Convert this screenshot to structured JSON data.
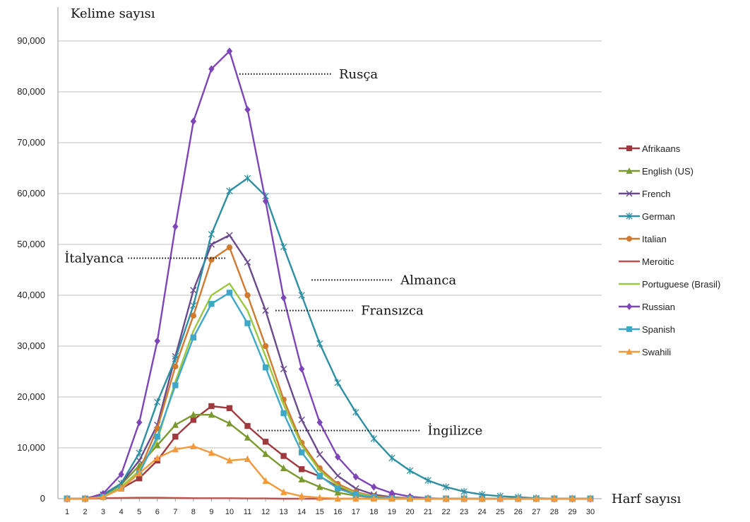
{
  "chart_data": {
    "type": "line",
    "ylabel": "Kelime sayısı",
    "xlabel": "Harf sayısı",
    "x": [
      1,
      2,
      3,
      4,
      5,
      6,
      7,
      8,
      9,
      10,
      11,
      12,
      13,
      14,
      15,
      16,
      17,
      18,
      19,
      20,
      21,
      22,
      23,
      24,
      25,
      26,
      27,
      28,
      29,
      30
    ],
    "ylim": [
      0,
      90000
    ],
    "yticks": [
      0,
      10000,
      20000,
      30000,
      40000,
      50000,
      60000,
      70000,
      80000,
      90000
    ],
    "ytick_labels": [
      "0",
      "10,000",
      "20,000",
      "30,000",
      "40,000",
      "50,000",
      "60,000",
      "70,000",
      "80,000",
      "90,000"
    ],
    "grid": true,
    "legend_position": "right",
    "series": [
      {
        "name": "Afrikaans",
        "color": "#A0393D",
        "marker": "square",
        "values": [
          0,
          0,
          500,
          2000,
          4000,
          7500,
          12200,
          15500,
          18200,
          17800,
          14300,
          11200,
          8400,
          5800,
          4400,
          2300,
          1100,
          500,
          200,
          100,
          0,
          0,
          0,
          0,
          0,
          0,
          0,
          0,
          0,
          0
        ]
      },
      {
        "name": "English (US)",
        "color": "#7A9A2E",
        "marker": "triangle",
        "values": [
          0,
          0,
          500,
          2800,
          6500,
          10500,
          14500,
          16500,
          16500,
          14800,
          12000,
          8800,
          6000,
          3800,
          2300,
          1200,
          600,
          200,
          100,
          0,
          0,
          0,
          0,
          0,
          0,
          0,
          0,
          0,
          0,
          0
        ]
      },
      {
        "name": "French",
        "color": "#6A4A8C",
        "marker": "x",
        "values": [
          0,
          0,
          800,
          3000,
          7500,
          14500,
          28000,
          41000,
          50000,
          51800,
          46500,
          37000,
          25500,
          15500,
          8700,
          4500,
          2000,
          800,
          300,
          100,
          0,
          0,
          0,
          0,
          0,
          0,
          0,
          0,
          0,
          0
        ]
      },
      {
        "name": "German",
        "color": "#2D8FA3",
        "marker": "star",
        "values": [
          0,
          0,
          700,
          3000,
          9000,
          19000,
          27500,
          38000,
          52000,
          60500,
          63000,
          59500,
          49500,
          40000,
          30500,
          22800,
          17000,
          11800,
          8000,
          5500,
          3600,
          2300,
          1400,
          800,
          500,
          300,
          100,
          0,
          0,
          0
        ]
      },
      {
        "name": "Italian",
        "color": "#D07A2F",
        "marker": "circle",
        "values": [
          0,
          0,
          400,
          2200,
          5500,
          13800,
          26000,
          36000,
          47000,
          49400,
          40000,
          30000,
          19500,
          11000,
          6000,
          2900,
          1300,
          500,
          200,
          100,
          0,
          0,
          0,
          0,
          0,
          0,
          0,
          0,
          0,
          0
        ]
      },
      {
        "name": "Meroitic",
        "color": "#C0504D",
        "marker": "none",
        "values": [
          0,
          0,
          100,
          150,
          200,
          200,
          150,
          100,
          100,
          100,
          50,
          50,
          0,
          0,
          0,
          0,
          0,
          0,
          0,
          0,
          0,
          0,
          0,
          0,
          0,
          0,
          0,
          0,
          0,
          0
        ]
      },
      {
        "name": "Portuguese (Brasil)",
        "color": "#9BC83E",
        "marker": "none",
        "values": [
          0,
          0,
          400,
          2300,
          5500,
          11500,
          23000,
          33000,
          40000,
          42300,
          37000,
          28000,
          18500,
          10500,
          5500,
          2600,
          1100,
          400,
          100,
          0,
          0,
          0,
          0,
          0,
          0,
          0,
          0,
          0,
          0,
          0
        ]
      },
      {
        "name": "Russian",
        "color": "#7E45B8",
        "marker": "diamond",
        "values": [
          0,
          0,
          1000,
          4800,
          15000,
          31000,
          53500,
          74200,
          84500,
          88000,
          76500,
          58500,
          39500,
          25500,
          15000,
          8200,
          4300,
          2300,
          1100,
          400,
          100,
          0,
          0,
          0,
          0,
          0,
          0,
          0,
          0,
          0
        ]
      },
      {
        "name": "Spanish",
        "color": "#3FA8C8",
        "marker": "square",
        "values": [
          0,
          0,
          400,
          2000,
          5000,
          12200,
          22300,
          31700,
          38300,
          40500,
          34500,
          25800,
          16800,
          9100,
          4500,
          2000,
          800,
          300,
          100,
          0,
          0,
          0,
          0,
          0,
          0,
          0,
          0,
          0,
          0,
          0
        ]
      },
      {
        "name": "Swahili",
        "color": "#F39A3C",
        "marker": "triangle",
        "values": [
          0,
          0,
          300,
          2000,
          5000,
          8000,
          9700,
          10300,
          9000,
          7500,
          7800,
          3500,
          1300,
          500,
          200,
          0,
          0,
          0,
          0,
          0,
          0,
          0,
          0,
          0,
          0,
          0,
          0,
          0,
          0,
          0
        ]
      }
    ],
    "annotations": [
      {
        "text": "Rusça",
        "x": 10,
        "y": 83500,
        "side": "right"
      },
      {
        "text": "İtalyanca",
        "x": 9,
        "y": 47300,
        "side": "left"
      },
      {
        "text": "Almanca",
        "x": 14,
        "y": 43000,
        "side": "right"
      },
      {
        "text": "Fransızca",
        "x": 12,
        "y": 37000,
        "side": "right"
      },
      {
        "text": "İngilizce",
        "x": 11,
        "y": 13400,
        "side": "right"
      }
    ]
  }
}
